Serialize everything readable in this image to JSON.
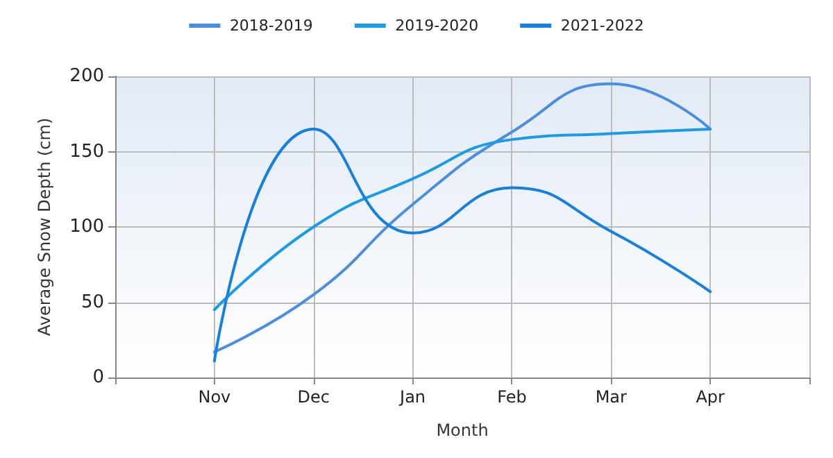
{
  "chart_data": {
    "type": "line",
    "xlabel": "Month",
    "ylabel": "Average Snow Depth (cm)",
    "categories": [
      "Nov",
      "Dec",
      "Jan",
      "Feb",
      "Mar",
      "Apr"
    ],
    "series": [
      {
        "name": "2018-2019",
        "color": "#4a8ee0",
        "values": [
          17,
          55,
          115,
          163,
          195,
          165
        ]
      },
      {
        "name": "2019-2020",
        "color": "#1a9be6",
        "values": [
          45,
          100,
          132,
          158,
          162,
          165
        ]
      },
      {
        "name": "2021-2022",
        "color": "#1580e0",
        "values": [
          11,
          165,
          96,
          126,
          97,
          57
        ]
      }
    ],
    "ylim": [
      0,
      200
    ],
    "yticks": [
      0,
      50,
      100,
      150,
      200
    ],
    "grid": true,
    "legend": "top",
    "marker": "none",
    "line_style": "solid"
  }
}
